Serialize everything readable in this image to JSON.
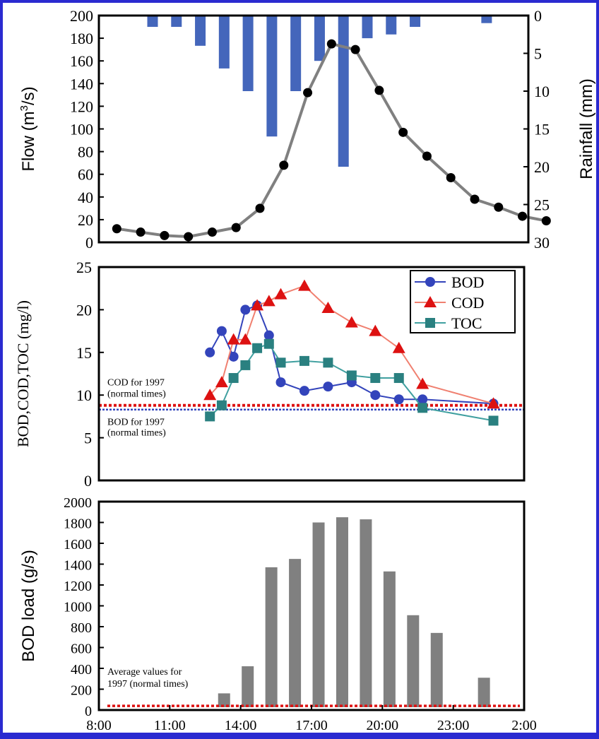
{
  "colors": {
    "page_background": "#2a2ad0",
    "panel_background": "#ffffff",
    "rain_bar": "#4466bb",
    "flow_line": "#808080",
    "flow_marker": "#000000",
    "bod": "#3344bb",
    "cod": "#dd1111",
    "cod_line": "#f08070",
    "toc": "#2a8080",
    "toc_line": "#40a0a0",
    "reference_red": "#dd1111",
    "reference_blue": "#3344bb",
    "load_bar": "#808080"
  },
  "chart_data": [
    {
      "id": "flow_rain",
      "type": "bar+line",
      "ylabel": "Flow (m³/s)",
      "ylabel_parts": [
        "Flow (m",
        "3",
        "/s)"
      ],
      "y2label": "Rainfall (mm)",
      "ylim": [
        0,
        200
      ],
      "yticks": [
        0,
        20,
        40,
        60,
        80,
        100,
        120,
        140,
        160,
        180,
        200
      ],
      "y2lim": [
        0,
        30
      ],
      "y2ticks": [
        0,
        5,
        10,
        15,
        20,
        25,
        30
      ],
      "y2_inverted": true,
      "xlim": [
        8,
        26
      ],
      "rainfall_series": {
        "name": "Rainfall",
        "x": [
          10.25,
          11.25,
          12.25,
          13.25,
          14.25,
          15.25,
          16.25,
          17.25,
          18.25,
          19.25,
          20.25,
          21.25,
          24.25
        ],
        "values": [
          1.5,
          1.5,
          4,
          7,
          10,
          16,
          10,
          6,
          20,
          3,
          2.5,
          1.5,
          1
        ]
      },
      "flow_series": {
        "name": "Flow",
        "x": [
          8.75,
          9.75,
          10.75,
          11.75,
          12.75,
          13.75,
          14.75,
          15.75,
          16.75,
          17.75,
          18.75,
          19.75,
          20.75,
          21.75,
          22.75,
          23.75,
          24.75,
          25.75,
          26.75
        ],
        "values": [
          12,
          9,
          6,
          5,
          9,
          13,
          30,
          68,
          132,
          175,
          170,
          134,
          97,
          76,
          57,
          38,
          31,
          23,
          19
        ]
      }
    },
    {
      "id": "quality",
      "type": "line",
      "ylabel": "BOD,COD,TOC (mg/l)",
      "ylim": [
        0,
        25
      ],
      "yticks": [
        0,
        5,
        10,
        15,
        20,
        25
      ],
      "xlim": [
        8,
        26
      ],
      "series": [
        {
          "name": "BOD",
          "marker": "circle",
          "x": [
            12.7,
            13.2,
            13.7,
            14.2,
            14.7,
            15.2,
            15.7,
            16.7,
            17.7,
            18.7,
            19.7,
            20.7,
            21.7,
            24.7
          ],
          "values": [
            15,
            17.5,
            14.5,
            20,
            20.5,
            17,
            11.5,
            10.5,
            11,
            11.5,
            10,
            9.5,
            9.5,
            9
          ]
        },
        {
          "name": "COD",
          "marker": "triangle",
          "x": [
            12.7,
            13.2,
            13.7,
            14.2,
            14.7,
            15.2,
            15.7,
            16.7,
            17.7,
            18.7,
            19.7,
            20.7,
            21.7,
            24.7
          ],
          "values": [
            10,
            11.5,
            16.5,
            16.5,
            20.5,
            21,
            21.8,
            22.8,
            20.2,
            18.5,
            17.5,
            15.5,
            11.3,
            9
          ]
        },
        {
          "name": "TOC",
          "marker": "square",
          "x": [
            12.7,
            13.2,
            13.7,
            14.2,
            14.7,
            15.2,
            15.7,
            16.7,
            17.7,
            18.7,
            19.7,
            20.7,
            21.7,
            24.7
          ],
          "values": [
            7.5,
            8.8,
            12,
            13.5,
            15.5,
            16,
            13.8,
            14,
            13.8,
            12.3,
            12,
            12,
            8.5,
            7
          ]
        }
      ],
      "legend": "top-right",
      "references": [
        {
          "name": "COD for 1997 (normal times)",
          "label_lines": [
            "COD for 1997",
            "(normal times)"
          ],
          "value": 8.8,
          "color": "#dd1111",
          "label_color": "#dd1111"
        },
        {
          "name": "BOD for 1997 (normal times)",
          "label_lines": [
            "BOD for 1997",
            "(normal times)"
          ],
          "value": 8.3,
          "color": "#3344bb",
          "label_color": "#000000"
        }
      ]
    },
    {
      "id": "bod_load",
      "type": "bar",
      "ylabel": "BOD load (g/s)",
      "ylim": [
        0,
        2000
      ],
      "yticks": [
        0,
        200,
        400,
        600,
        800,
        1000,
        1200,
        1400,
        1600,
        1800,
        2000
      ],
      "xlim": [
        8,
        26
      ],
      "xticks": [
        "8:00",
        "11:00",
        "14:00",
        "17:00",
        "20:00",
        "23:00",
        "2:00"
      ],
      "x": [
        13.3,
        14.3,
        15.3,
        16.3,
        17.3,
        18.3,
        19.3,
        20.3,
        21.3,
        22.3,
        24.3
      ],
      "values": [
        160,
        420,
        1370,
        1450,
        1800,
        1850,
        1830,
        1330,
        910,
        740,
        310
      ],
      "reference": {
        "name": "Average values for 1997 (normal times)",
        "label_lines": [
          "Average values for",
          "1997 (normal times)"
        ],
        "value": 40,
        "color": "#dd1111"
      }
    }
  ]
}
